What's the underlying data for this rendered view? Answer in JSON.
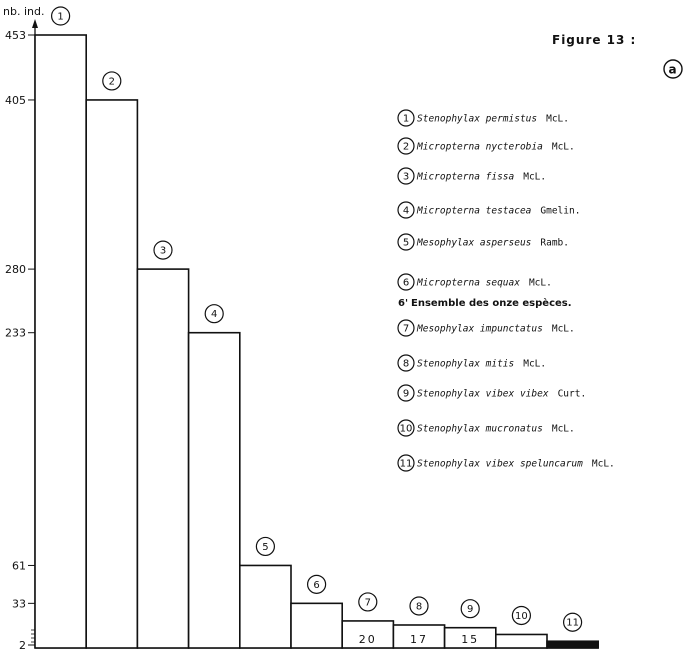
{
  "figure": {
    "title": "Figure  13 :",
    "panel_label": "a"
  },
  "chart_data": {
    "type": "bar",
    "ylabel": "nb. ind.",
    "ylim": [
      0,
      460
    ],
    "y_tick_labels": [
      "453",
      "405",
      "280",
      "233",
      "61",
      "33",
      "2"
    ],
    "y_ticks": [
      453,
      405,
      280,
      233,
      61,
      33,
      2
    ],
    "categories": [
      "1",
      "2",
      "3",
      "4",
      "5",
      "6",
      "7",
      "8",
      "9",
      "10",
      "11"
    ],
    "values": [
      453,
      405,
      280,
      233,
      61,
      33,
      20,
      17,
      15,
      10,
      5
    ],
    "bar_value_labels": [
      "",
      "",
      "",
      "",
      "",
      "",
      "20",
      "17",
      "15",
      "",
      ""
    ],
    "legend": [
      {
        "num": "1",
        "species": "Stenophylax  permistus",
        "author": "McL."
      },
      {
        "num": "2",
        "species": "Micropterna  nycterobia",
        "author": "McL."
      },
      {
        "num": "3",
        "species": "Micropterna  fissa",
        "author": "McL."
      },
      {
        "num": "4",
        "species": "Micropterna  testacea",
        "author": "Gmelin."
      },
      {
        "num": "5",
        "species": "Mesophylax  asperseus",
        "author": "Ramb."
      },
      {
        "num": "6",
        "species": "Micropterna  sequax",
        "author": "McL."
      },
      {
        "num": "6'",
        "species": "Ensemble des onze espèces.",
        "author": ""
      },
      {
        "num": "7",
        "species": "Mesophylax  impunctatus",
        "author": "McL."
      },
      {
        "num": "8",
        "species": "Stenophylax  mitis",
        "author": "McL."
      },
      {
        "num": "9",
        "species": "Stenophylax  vibex vibex",
        "author": "Curt."
      },
      {
        "num": "10",
        "species": "Stenophylax  mucronatus",
        "author": "McL."
      },
      {
        "num": "11",
        "species": "Stenophylax  vibex speluncarum",
        "author": "McL."
      }
    ]
  }
}
